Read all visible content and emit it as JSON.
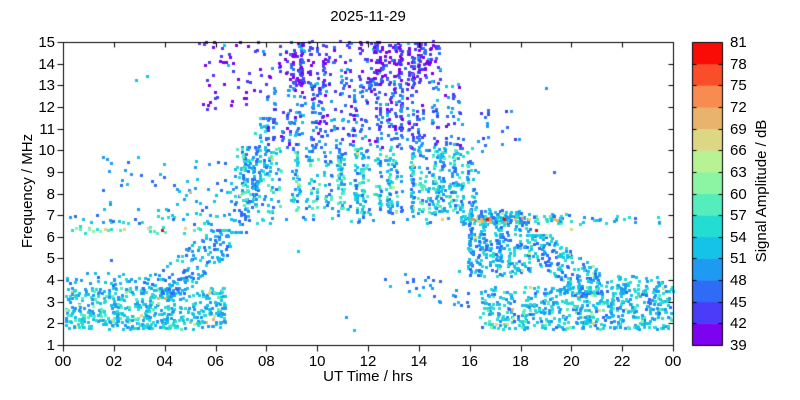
{
  "title": "2025-11-29",
  "axes": {
    "x": {
      "label": "UT Time / hrs",
      "range_hours": [
        0,
        24
      ],
      "tick_values": [
        0,
        2,
        4,
        6,
        8,
        10,
        12,
        14,
        16,
        18,
        20,
        22,
        24
      ],
      "tick_labels": [
        "00",
        "02",
        "04",
        "06",
        "08",
        "10",
        "12",
        "14",
        "16",
        "18",
        "20",
        "22",
        "00"
      ]
    },
    "y": {
      "label": "Frequency / MHz",
      "range_mhz": [
        1,
        15
      ],
      "tick_values": [
        1,
        2,
        3,
        4,
        5,
        6,
        7,
        8,
        9,
        10,
        11,
        12,
        13,
        14,
        15
      ],
      "tick_labels": [
        "1",
        "2",
        "3",
        "4",
        "5",
        "6",
        "7",
        "8",
        "9",
        "10",
        "11",
        "12",
        "13",
        "14",
        "15"
      ]
    }
  },
  "colorbar": {
    "label": "Signal Amplitude / dB",
    "range_db": [
      39,
      81
    ],
    "tick_values": [
      39,
      42,
      45,
      48,
      51,
      54,
      57,
      60,
      63,
      66,
      69,
      72,
      75,
      78,
      81
    ],
    "segment_colors": [
      "#7c02f0",
      "#4a3cf8",
      "#2e6bf6",
      "#1f9af2",
      "#15c2e8",
      "#23dcd2",
      "#55edbb",
      "#8bf5a3",
      "#b7f392",
      "#ddd783",
      "#e9b26d",
      "#f88c50",
      "#fa4d2a",
      "#f90b06"
    ]
  },
  "chart_data": {
    "type": "heatmap",
    "description": "HF signal amplitude spectrogram: scattered 3px cells of amplitude (dB) vs UT time (hrs) and frequency (MHz)",
    "x_unit": "hours UT",
    "y_unit": "MHz",
    "value_unit": "dB",
    "xlim": [
      0,
      24
    ],
    "ylim": [
      1,
      15
    ],
    "vlim": [
      39,
      81
    ],
    "bands": [
      {
        "name": "night-low-left",
        "t": [
          0.1,
          6.4
        ],
        "f": [
          1.75,
          3.65
        ],
        "n": 520,
        "amp": [
          48,
          58
        ],
        "fleck": {
          "p": 0.05,
          "amp": [
            60,
            72
          ]
        }
      },
      {
        "name": "night-low-left-upper",
        "t": [
          0.1,
          3.8
        ],
        "f": [
          3.6,
          4.35
        ],
        "n": 45,
        "amp": [
          46,
          55
        ]
      },
      {
        "name": "dawn-rise",
        "t": [
          3.8,
          6.6
        ],
        "f": [
          3.4,
          6.3
        ],
        "n": 150,
        "amp": [
          45,
          55
        ],
        "shape": "rise"
      },
      {
        "name": "line-7mhz-allday",
        "t": [
          0.0,
          24.0
        ],
        "f": [
          6.6,
          7.05
        ],
        "n": 110,
        "amp": [
          45,
          57
        ]
      },
      {
        "name": "line-6.3mhz-morning",
        "t": [
          0.3,
          5.5
        ],
        "f": [
          6.15,
          6.5
        ],
        "n": 25,
        "amp": [
          54,
          62
        ]
      },
      {
        "name": "morning-sparse-mid",
        "t": [
          1.5,
          6.8
        ],
        "f": [
          7.0,
          9.7
        ],
        "n": 55,
        "amp": [
          45,
          54
        ]
      },
      {
        "name": "dawn-shoulder",
        "t": [
          6.6,
          8.2
        ],
        "f": [
          6.2,
          11.5
        ],
        "n": 150,
        "amp": [
          45,
          56
        ],
        "shape": "rise",
        "cluster": true
      },
      {
        "name": "day-main",
        "t": [
          6.8,
          16.3
        ],
        "f": [
          7.1,
          10.15
        ],
        "n": 720,
        "amp": [
          45,
          60
        ],
        "cluster": true,
        "fleck": {
          "p": 0.04,
          "amp": [
            57,
            68
          ]
        }
      },
      {
        "name": "day-upper",
        "t": [
          7.5,
          15.7
        ],
        "f": [
          10.1,
          13.1
        ],
        "n": 420,
        "amp": [
          40,
          52
        ],
        "cluster": true
      },
      {
        "name": "day-top",
        "t": [
          8.4,
          14.8
        ],
        "f": [
          13.0,
          15.05
        ],
        "n": 380,
        "amp": [
          39,
          46
        ],
        "cluster": true,
        "fleck": {
          "p": 0.08,
          "amp": [
            48,
            53
          ]
        }
      },
      {
        "name": "predawn-top-purple",
        "t": [
          5.3,
          8.4
        ],
        "f": [
          11.9,
          15.05
        ],
        "n": 55,
        "amp": [
          39,
          44
        ],
        "fleck": {
          "p": 0.15,
          "amp": [
            48,
            54
          ]
        }
      },
      {
        "name": "evening-cluster",
        "t": [
          15.9,
          18.4
        ],
        "f": [
          4.2,
          7.3
        ],
        "n": 330,
        "amp": [
          45,
          57
        ],
        "cluster": true,
        "fleck": {
          "p": 0.03,
          "amp": [
            60,
            70
          ]
        }
      },
      {
        "name": "evening-descend",
        "t": [
          18.2,
          21.2
        ],
        "f": [
          3.4,
          6.1
        ],
        "n": 230,
        "amp": [
          45,
          57
        ],
        "shape": "fall",
        "fleck": {
          "p": 0.04,
          "amp": [
            60,
            68
          ]
        }
      },
      {
        "name": "night-low-right",
        "t": [
          16.4,
          24.0
        ],
        "f": [
          1.75,
          3.7
        ],
        "n": 560,
        "amp": [
          47,
          58
        ],
        "fleck": {
          "p": 0.05,
          "amp": [
            60,
            70
          ]
        }
      },
      {
        "name": "midday-low-sparse",
        "t": [
          12.6,
          16.2
        ],
        "f": [
          2.8,
          4.4
        ],
        "n": 28,
        "amp": [
          45,
          52
        ],
        "shape": "fall"
      },
      {
        "name": "evening-line-6.8",
        "t": [
          15.6,
          20.0
        ],
        "f": [
          6.6,
          7.0
        ],
        "n": 70,
        "amp": [
          45,
          58
        ],
        "fleck": {
          "p": 0.18,
          "amp": [
            60,
            75
          ]
        }
      },
      {
        "name": "evening-upper-sparse",
        "t": [
          16.2,
          18.2
        ],
        "f": [
          9.8,
          12.2
        ],
        "n": 18,
        "amp": [
          42,
          50
        ]
      },
      {
        "name": "late-4mhz-shelf",
        "t": [
          21.0,
          24.0
        ],
        "f": [
          3.5,
          4.2
        ],
        "n": 40,
        "amp": [
          48,
          57
        ]
      },
      {
        "name": "random-sprinkle",
        "t": [
          0.2,
          23.8
        ],
        "f": [
          1.6,
          14.8
        ],
        "n": 15,
        "amp": [
          44,
          54
        ]
      }
    ],
    "highlights": [
      {
        "t": 1.65,
        "f": 6.35,
        "amp": 67
      },
      {
        "t": 2.4,
        "f": 6.35,
        "amp": 66
      },
      {
        "t": 3.35,
        "f": 6.4,
        "amp": 67
      },
      {
        "t": 3.9,
        "f": 6.3,
        "amp": 80
      },
      {
        "t": 4.8,
        "f": 6.4,
        "amp": 66
      },
      {
        "t": 5.0,
        "f": 8.05,
        "amp": 70
      },
      {
        "t": 16.15,
        "f": 6.8,
        "amp": 72
      },
      {
        "t": 16.45,
        "f": 6.8,
        "amp": 70
      },
      {
        "t": 16.7,
        "f": 6.8,
        "amp": 80
      },
      {
        "t": 17.35,
        "f": 6.8,
        "amp": 79
      },
      {
        "t": 17.8,
        "f": 6.8,
        "amp": 71
      },
      {
        "t": 18.05,
        "f": 6.85,
        "amp": 73
      },
      {
        "t": 18.35,
        "f": 6.8,
        "amp": 66
      },
      {
        "t": 18.6,
        "f": 6.3,
        "amp": 78
      },
      {
        "t": 19.3,
        "f": 6.8,
        "amp": 70
      },
      {
        "t": 20.0,
        "f": 6.35,
        "amp": 66
      },
      {
        "t": 14.9,
        "f": 6.8,
        "amp": 66
      }
    ]
  }
}
